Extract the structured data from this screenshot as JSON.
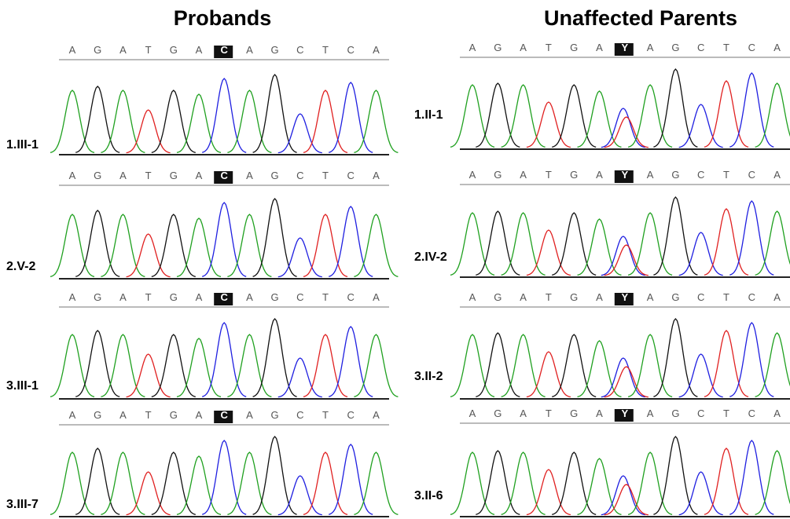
{
  "titles": {
    "probands": "Probands",
    "parents": "Unaffected Parents"
  },
  "probands": [
    {
      "label": "1.III-1",
      "sequence": [
        "A",
        "G",
        "A",
        "T",
        "G",
        "A",
        "C",
        "A",
        "G",
        "C",
        "T",
        "C",
        "A"
      ]
    },
    {
      "label": "2.V-2",
      "sequence": [
        "A",
        "G",
        "A",
        "T",
        "G",
        "A",
        "C",
        "A",
        "G",
        "C",
        "T",
        "C",
        "A"
      ]
    },
    {
      "label": "3.III-1",
      "sequence": [
        "A",
        "G",
        "A",
        "T",
        "G",
        "A",
        "C",
        "A",
        "G",
        "C",
        "T",
        "C",
        "A"
      ]
    },
    {
      "label": "3.III-7",
      "sequence": [
        "A",
        "G",
        "A",
        "T",
        "G",
        "A",
        "C",
        "A",
        "G",
        "C",
        "T",
        "C",
        "A"
      ]
    }
  ],
  "parents": [
    {
      "label": "1.II-1",
      "sequence": [
        "A",
        "G",
        "A",
        "T",
        "G",
        "A",
        "Y",
        "A",
        "G",
        "C",
        "T",
        "C",
        "A"
      ]
    },
    {
      "label": "2.IV-2",
      "sequence": [
        "A",
        "G",
        "A",
        "T",
        "G",
        "A",
        "Y",
        "A",
        "G",
        "C",
        "T",
        "C",
        "A"
      ]
    },
    {
      "label": "3.II-2",
      "sequence": [
        "A",
        "G",
        "A",
        "T",
        "G",
        "A",
        "Y",
        "A",
        "G",
        "C",
        "T",
        "C",
        "A"
      ]
    },
    {
      "label": "3.II-6",
      "sequence": [
        "A",
        "G",
        "A",
        "T",
        "G",
        "A",
        "Y",
        "A",
        "G",
        "C",
        "T",
        "C",
        "A"
      ]
    }
  ]
}
